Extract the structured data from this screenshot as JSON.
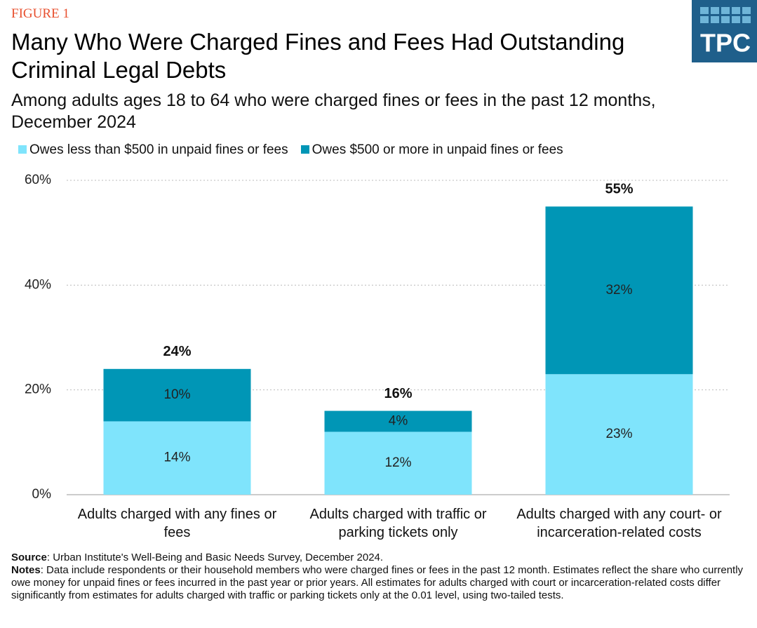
{
  "figure_label": "FIGURE 1",
  "logo": "TPC",
  "chart_data": {
    "type": "stacked_bar",
    "title": "Many Who Were Charged Fines and Fees Had Outstanding Criminal Legal Debts",
    "subtitle": "Among adults ages 18 to 64 who were charged fines or fees in the past 12 months, December 2024",
    "categories": [
      "Adults charged with any fines or fees",
      "Adults charged with traffic or parking tickets only",
      "Adults charged with any court- or incarceration-related costs"
    ],
    "series": [
      {
        "name": "Owes less than $500 in unpaid fines or fees",
        "color": "#7fe4fc",
        "values": [
          14,
          12,
          23
        ],
        "value_labels": [
          "14%",
          "12%",
          "23%"
        ]
      },
      {
        "name": "Owes $500 or more in unpaid fines or fees",
        "color": "#0096b6",
        "values": [
          10,
          4,
          32
        ],
        "value_labels": [
          "10%",
          "4%",
          "32%"
        ]
      }
    ],
    "totals": {
      "values": [
        24,
        16,
        55
      ],
      "value_labels": [
        "24%",
        "16%",
        "55%"
      ]
    },
    "ylim": [
      0,
      60
    ],
    "yticks": [
      {
        "value": 0,
        "label": "0%"
      },
      {
        "value": 20,
        "label": "20%"
      },
      {
        "value": 40,
        "label": "40%"
      },
      {
        "value": 60,
        "label": "60%"
      }
    ],
    "grid": true,
    "legend": "top-left"
  },
  "source": {
    "label": "Source",
    "text": ": Urban Institute's Well-Being and Basic Needs Survey, December 2024."
  },
  "notes": {
    "label": "Notes",
    "text": ": Data include respondents or their household members who were charged fines or fees in the past 12 month. Estimates reflect the share who currently owe money for unpaid fines or fees incurred in the past year or prior years. All estimates for adults charged with court or incarceration-related costs differ significantly from estimates for adults charged with traffic or parking tickets only at the 0.01 level, using two-tailed tests."
  }
}
